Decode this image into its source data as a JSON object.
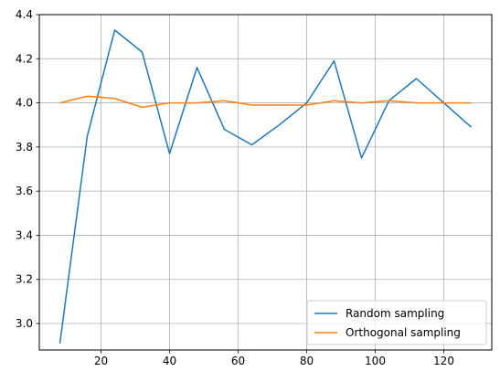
{
  "chart_data": {
    "type": "line",
    "title": "",
    "xlabel": "",
    "ylabel": "",
    "xlim": [
      2,
      134
    ],
    "ylim": [
      2.88,
      4.4
    ],
    "x_ticks": [
      20,
      40,
      60,
      80,
      100,
      120
    ],
    "y_ticks": [
      3.0,
      3.2,
      3.4,
      3.6,
      3.8,
      4.0,
      4.2,
      4.4
    ],
    "x_tick_labels": [
      "20",
      "40",
      "60",
      "80",
      "100",
      "120"
    ],
    "y_tick_labels": [
      "3.0",
      "3.2",
      "3.4",
      "3.6",
      "3.8",
      "4.0",
      "4.2",
      "4.4"
    ],
    "grid": true,
    "legend_position": "bottom-right",
    "x": [
      8,
      16,
      24,
      32,
      40,
      48,
      56,
      64,
      72,
      80,
      88,
      96,
      104,
      112,
      120,
      128
    ],
    "series": [
      {
        "name": "Random sampling",
        "color": "#1f77b4",
        "values": [
          2.91,
          3.85,
          4.33,
          4.23,
          3.77,
          4.16,
          3.88,
          3.81,
          3.9,
          4.0,
          4.19,
          3.75,
          4.01,
          4.11,
          4.0,
          3.89
        ]
      },
      {
        "name": "Orthogonal sampling",
        "color": "#ff7f0e",
        "values": [
          4.0,
          4.03,
          4.02,
          3.98,
          4.0,
          4.0,
          4.01,
          3.99,
          3.99,
          3.99,
          4.01,
          4.0,
          4.01,
          4.0,
          4.0,
          4.0
        ]
      }
    ]
  }
}
